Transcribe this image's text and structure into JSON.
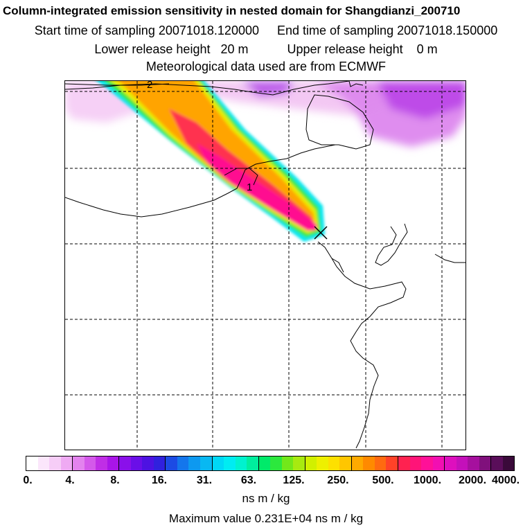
{
  "header": {
    "title": "Column-integrated emission sensitivity in nested domain for Shangdianzi_200710",
    "start_label": "Start time of sampling 20071018.120000",
    "end_label": "End time of sampling 20071018.150000",
    "lower_release": "Lower release height   20 m",
    "upper_release": "Upper release height    0 m",
    "met_data": "Meteorological data used are from ECMWF"
  },
  "map": {
    "contour_labels": [
      "2",
      "1"
    ],
    "receptor_marker": "x-icon"
  },
  "colorbar": {
    "tick_labels": [
      "0.",
      "4.",
      "8.",
      "16.",
      "31.",
      "63.",
      "125.",
      "250.",
      "500.",
      "1000.",
      "2000.",
      "4000."
    ],
    "colors": [
      "#ffffff",
      "#fbe6fb",
      "#f6cdf7",
      "#efaaf3",
      "#e383ee",
      "#d459ea",
      "#c02ee6",
      "#a915e8",
      "#8a10ea",
      "#6a0fe8",
      "#4d12e2",
      "#3021de",
      "#1c4be4",
      "#1476ec",
      "#0d99f0",
      "#08b8f2",
      "#00d8f6",
      "#00ecf2",
      "#00f2cf",
      "#00ee9e",
      "#00ea6a",
      "#2ce83d",
      "#72e81a",
      "#a8ea10",
      "#d1f000",
      "#eef000",
      "#fde000",
      "#ffc600",
      "#ffaa00",
      "#ff8a00",
      "#ff6a10",
      "#ff4228",
      "#ff2250",
      "#ff1478",
      "#ff1098",
      "#f20fb2",
      "#de0fbe",
      "#c410ba",
      "#a6109e",
      "#80107c",
      "#5a0e5a",
      "#3a0a3a"
    ],
    "units": "ns m / kg",
    "max_value": "Maximum value  0.231E+04 ns m / kg"
  }
}
